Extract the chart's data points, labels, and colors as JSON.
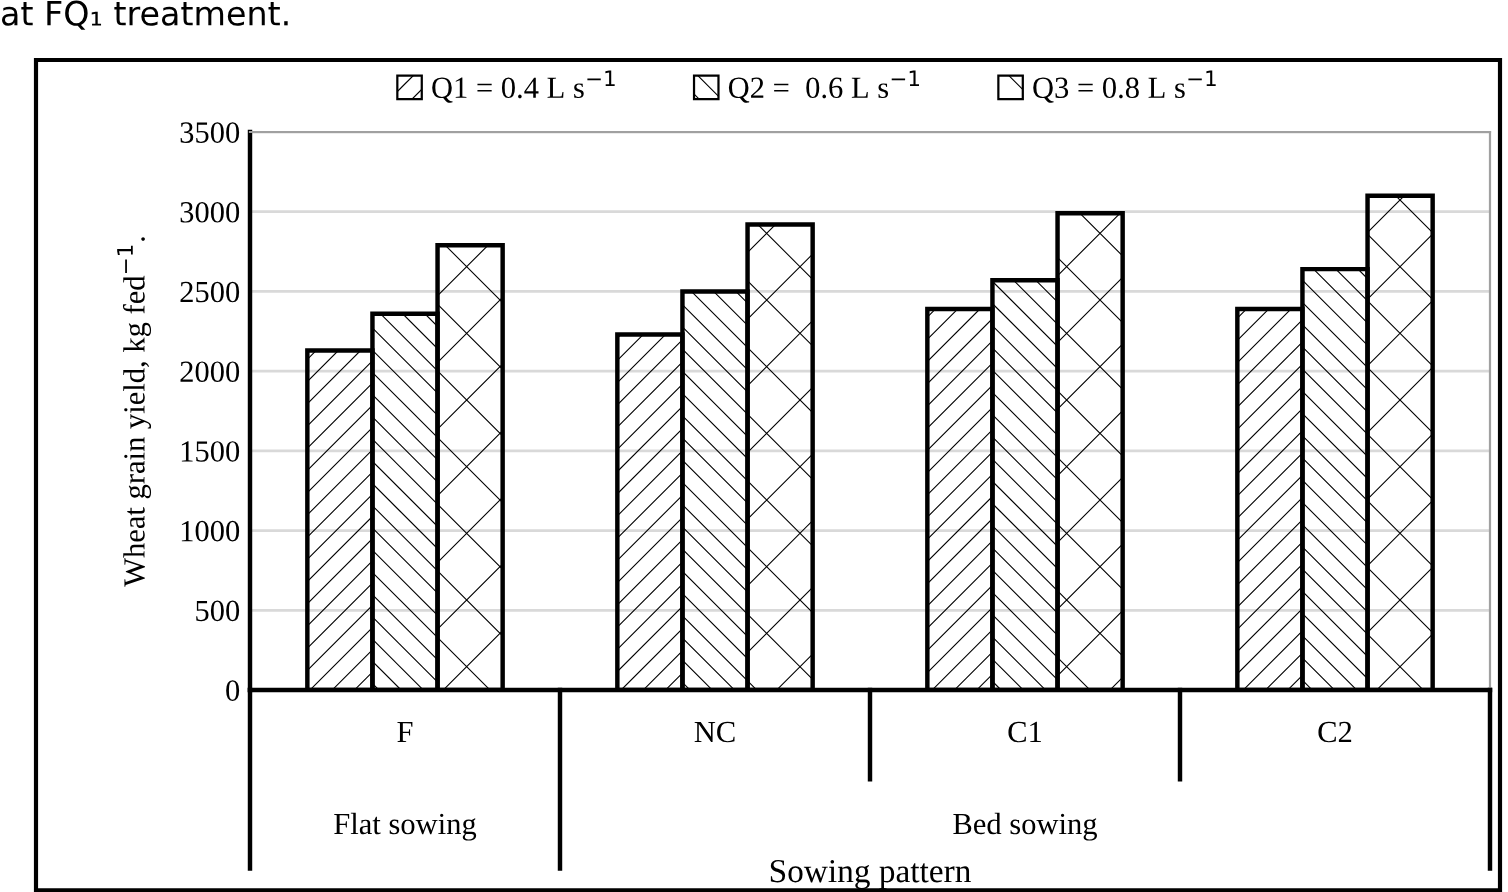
{
  "chart_data": {
    "type": "bar",
    "ylabel": "Wheat grain yield, kg fed$^{−1}$.",
    "xlabel": "Sowing pattern",
    "categories": [
      "F",
      "NC",
      "C1",
      "C2"
    ],
    "series": [
      {
        "name": "Q1 = 0.4 L s$^{−1}$",
        "color": "#000000",
        "values": [
          2130,
          2230,
          2390,
          2390
        ]
      },
      {
        "name": "Q2 =  0.6 L s$^{−1}$",
        "color": "#000000",
        "values": [
          2360,
          2500,
          2570,
          2640
        ]
      },
      {
        "name": "Q3 = 0.8 L s$^{−1}$",
        "color": "#000000",
        "values": [
          2790,
          2920,
          2990,
          3100
        ]
      }
    ],
    "ylim": [
      0,
      3500
    ],
    "yticks": [
      0,
      500,
      1000,
      1500,
      2000,
      2500,
      3000,
      3500
    ],
    "grid": "y",
    "legend": "top",
    "annotations": [
      "at FQ₁ treatment.",
      "Flat sowing",
      "Bed sowing"
    ]
  }
}
